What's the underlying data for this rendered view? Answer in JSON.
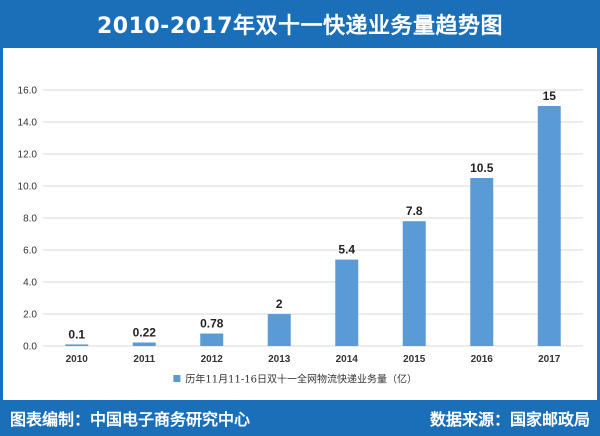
{
  "header": {
    "title": "2010-2017年双十一快递业务量趋势图"
  },
  "footer": {
    "left": "图表编制：中国电子商务研究中心",
    "right": "数据来源：国家邮政局"
  },
  "colors": {
    "frame": "#1a6fb8",
    "bar": "#5b9bd5",
    "grid": "#d9d9d9",
    "plot_bg": "#ffffff"
  },
  "chart_data": {
    "type": "bar",
    "categories": [
      "2010",
      "2011",
      "2012",
      "2013",
      "2014",
      "2015",
      "2016",
      "2017"
    ],
    "series": [
      {
        "name": "历年11月11-16日双十一全网物流快递业务量（亿）",
        "values": [
          0.1,
          0.22,
          0.78,
          2,
          5.4,
          7.8,
          10.5,
          15
        ],
        "labels": [
          "0.1",
          "0.22",
          "0.78",
          "2",
          "5.4",
          "7.8",
          "10.5",
          "15"
        ]
      }
    ],
    "yticks": [
      "0.0",
      "2.0",
      "4.0",
      "6.0",
      "8.0",
      "10.0",
      "12.0",
      "14.0",
      "16.0"
    ],
    "ylim": [
      0,
      16
    ],
    "grid": true,
    "legend": "bottom"
  }
}
